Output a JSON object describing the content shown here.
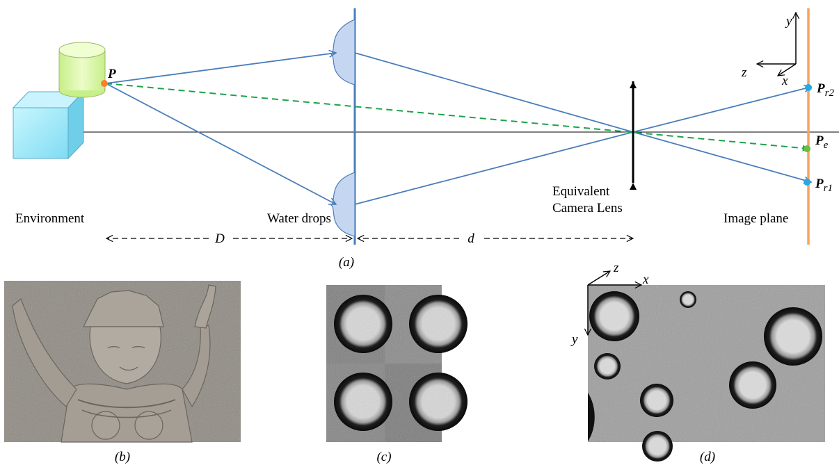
{
  "diagram": {
    "point_labels": {
      "p": "P",
      "pr2_main": "P",
      "pr2_sub": "r2",
      "pe_main": "P",
      "pe_sub": "e",
      "pr1_main": "P",
      "pr1_sub": "r1"
    },
    "axis_labels": {
      "y": "y",
      "z": "z",
      "x": "x"
    },
    "captions": {
      "environment": "Environment",
      "water_drops": "Water drops",
      "lens_line1": "Equivalent",
      "lens_line2": "Camera Lens",
      "image_plane": "Image plane"
    },
    "distances": {
      "big_d": "D",
      "small_d": "d"
    }
  },
  "panels": {
    "a": "(a)",
    "b": "(b)",
    "c": "(c)",
    "d": "(d)",
    "d_axes": {
      "z": "z",
      "x": "x",
      "y": "y"
    }
  },
  "colors": {
    "ray": "#4a7ebb",
    "dashed_ray": "#1aa34a",
    "image_plane": "#f4a460",
    "point_p": "#ff7f27",
    "point_r": "#27a9e1",
    "point_e": "#6abf40",
    "cube": "#a8ecff",
    "cylinder": "#dcf7a8"
  }
}
